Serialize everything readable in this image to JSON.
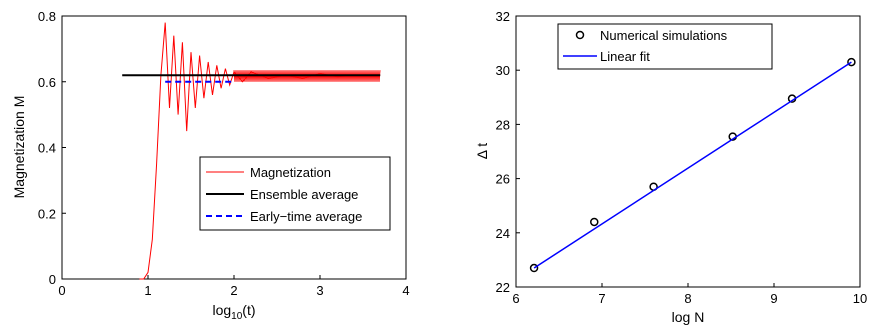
{
  "chart_data": [
    {
      "type": "line",
      "title": "",
      "xlabel": "log",
      "xlabel_sub": "10",
      "xlabel_suffix": "(t)",
      "ylabel": "Magnetization M",
      "xlim": [
        0,
        4
      ],
      "ylim": [
        0,
        0.8
      ],
      "xticks": [
        "0",
        "1",
        "2",
        "3",
        "4"
      ],
      "yticks": [
        "0",
        "0.2",
        "0.4",
        "0.6",
        "0.8"
      ],
      "grid": false,
      "legend_position": "bottom-right",
      "series": [
        {
          "name": "Magnetization",
          "color": "#ff0000",
          "style": "solid",
          "x": [
            0.9,
            0.95,
            1.0,
            1.05,
            1.1,
            1.15,
            1.2,
            1.25,
            1.3,
            1.35,
            1.4,
            1.45,
            1.5,
            1.55,
            1.6,
            1.65,
            1.7,
            1.75,
            1.8,
            1.85,
            1.9,
            1.95,
            2.0,
            2.1,
            2.2,
            2.4,
            2.6,
            2.8,
            3.0,
            3.2,
            3.4,
            3.6,
            3.7
          ],
          "y": [
            0.0,
            0.0,
            0.02,
            0.12,
            0.35,
            0.62,
            0.78,
            0.52,
            0.74,
            0.5,
            0.72,
            0.45,
            0.69,
            0.52,
            0.68,
            0.55,
            0.66,
            0.56,
            0.65,
            0.58,
            0.64,
            0.59,
            0.63,
            0.6,
            0.63,
            0.61,
            0.62,
            0.61,
            0.625,
            0.615,
            0.62,
            0.618,
            0.62
          ],
          "band_from_x": 2.0,
          "band_low": 0.6,
          "band_high": 0.635
        },
        {
          "name": "Ensemble average",
          "color": "#000000",
          "style": "solid",
          "x": [
            0.7,
            3.7
          ],
          "y": [
            0.62,
            0.62
          ]
        },
        {
          "name": "Early−time average",
          "color": "#0000ff",
          "style": "dashed",
          "x": [
            1.2,
            2.0
          ],
          "y": [
            0.6,
            0.6
          ]
        }
      ]
    },
    {
      "type": "scatter",
      "title": "",
      "xlabel": "log N",
      "ylabel": "Δ t",
      "xlim": [
        6,
        10
      ],
      "ylim": [
        22,
        32
      ],
      "xticks": [
        "6",
        "7",
        "8",
        "9",
        "10"
      ],
      "yticks": [
        "22",
        "24",
        "26",
        "28",
        "30",
        "32"
      ],
      "grid": false,
      "legend_position": "top-left",
      "series": [
        {
          "name": "Numerical simulations",
          "color": "#000000",
          "marker": "circle",
          "x": [
            6.21,
            6.91,
            7.6,
            8.52,
            9.21,
            9.9
          ],
          "y": [
            22.7,
            24.4,
            25.7,
            27.55,
            28.95,
            30.3
          ]
        },
        {
          "name": "Linear fit",
          "color": "#0000ff",
          "style": "solid",
          "x": [
            6.21,
            9.9
          ],
          "y": [
            22.7,
            30.3
          ]
        }
      ]
    }
  ]
}
